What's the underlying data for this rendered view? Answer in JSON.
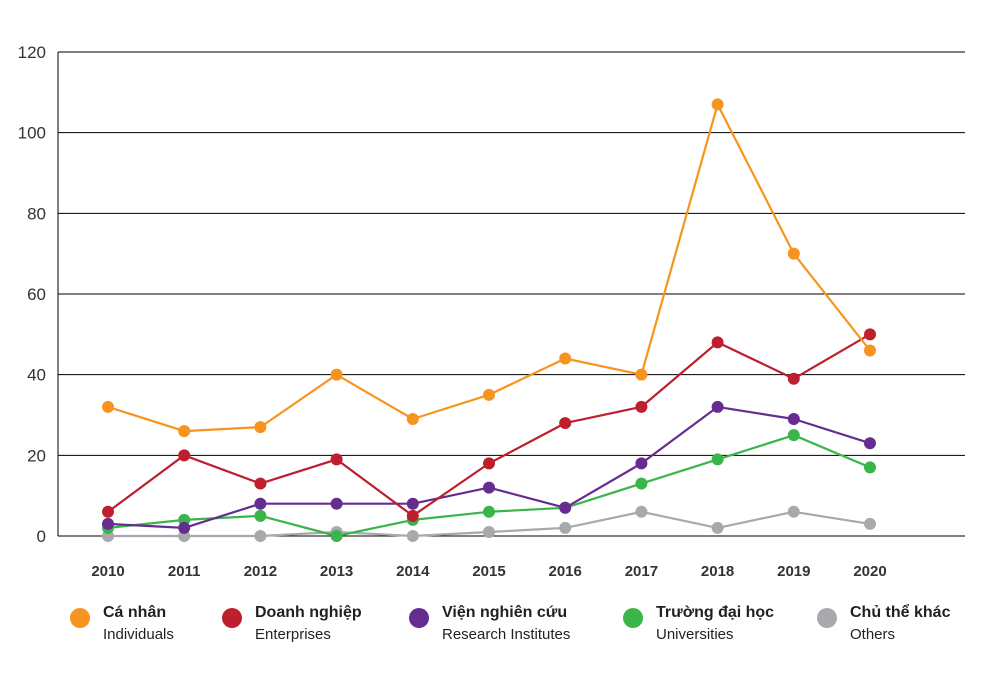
{
  "chart_data": {
    "type": "line",
    "title": "",
    "xlabel": "",
    "ylabel": "",
    "ylim": [
      0,
      120
    ],
    "yticks": [
      0,
      20,
      40,
      60,
      80,
      100,
      120
    ],
    "grid": "horizontal",
    "legend_position": "bottom",
    "categories": [
      "2010",
      "2011",
      "2012",
      "2013",
      "2014",
      "2015",
      "2016",
      "2017",
      "2018",
      "2019",
      "2020"
    ],
    "series": [
      {
        "name": "Cá nhân",
        "name_en": "Individuals",
        "color": "#f7941d",
        "values": [
          32,
          26,
          27,
          40,
          29,
          35,
          44,
          40,
          107,
          70,
          46
        ]
      },
      {
        "name": "Doanh nghiệp",
        "name_en": "Enterprises",
        "color": "#be1e2d",
        "values": [
          6,
          20,
          13,
          19,
          5,
          18,
          28,
          32,
          48,
          39,
          50
        ]
      },
      {
        "name": "Viện nghiên cứu",
        "name_en": "Research Institutes",
        "color": "#662d91",
        "values": [
          3,
          2,
          8,
          8,
          8,
          12,
          7,
          18,
          32,
          29,
          23
        ]
      },
      {
        "name": "Trường đại học",
        "name_en": "Universities",
        "color": "#39b54a",
        "values": [
          2,
          4,
          5,
          0,
          4,
          6,
          7,
          13,
          19,
          25,
          17
        ]
      },
      {
        "name": "Chủ thể khác",
        "name_en": "Others",
        "color": "#a7a9ac",
        "values": [
          0,
          0,
          0,
          1,
          0,
          1,
          2,
          6,
          2,
          6,
          3
        ]
      }
    ]
  }
}
